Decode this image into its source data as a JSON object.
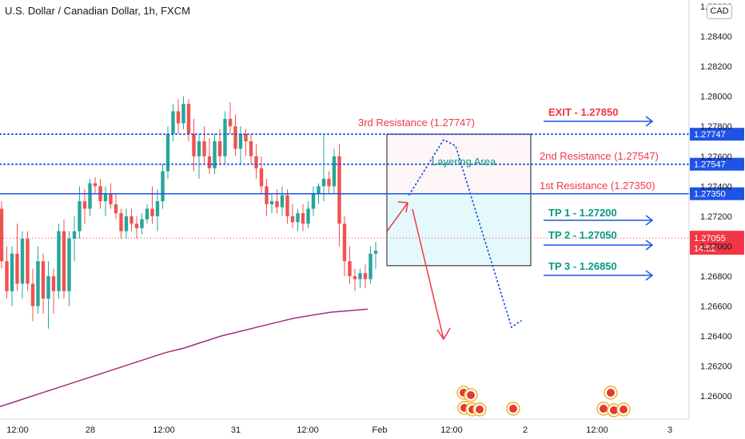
{
  "chart_data": {
    "type": "candlestick",
    "title": "U.S. Dollar / Canadian Dollar, 1h, FXCM",
    "currency": "CAD",
    "ylim": [
      1.259,
      1.286
    ],
    "y_ticks": [
      1.26,
      1.262,
      1.264,
      1.266,
      1.268,
      1.27,
      1.272,
      1.274,
      1.276,
      1.278,
      1.28,
      1.282,
      1.284,
      1.286
    ],
    "y_tick_labels": [
      "1.26000",
      "1.26200",
      "1.26400",
      "1.26600",
      "1.26800",
      "1.27000",
      "1.27200",
      "1.27400",
      "1.27600",
      "1.27800",
      "1.28000",
      "1.28200",
      "1.28400",
      "1.28600"
    ],
    "x_ticks": [
      "12:00",
      "28",
      "12:00",
      "31",
      "12:00",
      "Feb",
      "12:00",
      "2",
      "12:00",
      "3"
    ],
    "candles": [
      [
        1.2725,
        1.273,
        1.2685,
        1.269
      ],
      [
        1.269,
        1.27,
        1.2665,
        1.267
      ],
      [
        1.267,
        1.27,
        1.266,
        1.2695
      ],
      [
        1.2695,
        1.2715,
        1.267,
        1.2675
      ],
      [
        1.2675,
        1.271,
        1.2665,
        1.2705
      ],
      [
        1.2705,
        1.271,
        1.267,
        1.2675
      ],
      [
        1.2675,
        1.2685,
        1.265,
        1.266
      ],
      [
        1.266,
        1.27,
        1.2655,
        1.269
      ],
      [
        1.269,
        1.2695,
        1.2655,
        1.2665
      ],
      [
        1.2665,
        1.269,
        1.2645,
        1.268
      ],
      [
        1.268,
        1.2685,
        1.2655,
        1.267
      ],
      [
        1.267,
        1.2715,
        1.2665,
        1.271
      ],
      [
        1.271,
        1.2718,
        1.2665,
        1.267
      ],
      [
        1.267,
        1.271,
        1.266,
        1.2705
      ],
      [
        1.2705,
        1.272,
        1.269,
        1.271
      ],
      [
        1.271,
        1.274,
        1.2705,
        1.273
      ],
      [
        1.273,
        1.2738,
        1.2715,
        1.2725
      ],
      [
        1.2725,
        1.2745,
        1.272,
        1.2742
      ],
      [
        1.2742,
        1.2746,
        1.2735,
        1.274
      ],
      [
        1.274,
        1.2745,
        1.2725,
        1.273
      ],
      [
        1.273,
        1.274,
        1.272,
        1.2735
      ],
      [
        1.2735,
        1.2742,
        1.2725,
        1.2728
      ],
      [
        1.2728,
        1.2735,
        1.2718,
        1.2722
      ],
      [
        1.2722,
        1.2725,
        1.2705,
        1.271
      ],
      [
        1.271,
        1.2725,
        1.2705,
        1.272
      ],
      [
        1.272,
        1.2725,
        1.271,
        1.2715
      ],
      [
        1.2715,
        1.272,
        1.2705,
        1.2712
      ],
      [
        1.2712,
        1.2722,
        1.2708,
        1.2718
      ],
      [
        1.2718,
        1.2728,
        1.2715,
        1.2725
      ],
      [
        1.2725,
        1.274,
        1.2715,
        1.272
      ],
      [
        1.272,
        1.2738,
        1.271,
        1.273
      ],
      [
        1.273,
        1.2755,
        1.2725,
        1.275
      ],
      [
        1.275,
        1.278,
        1.2745,
        1.2775
      ],
      [
        1.2775,
        1.2795,
        1.277,
        1.279
      ],
      [
        1.279,
        1.2798,
        1.2775,
        1.2782
      ],
      [
        1.2782,
        1.28,
        1.2778,
        1.2795
      ],
      [
        1.2795,
        1.2798,
        1.277,
        1.2775
      ],
      [
        1.2775,
        1.2785,
        1.275,
        1.276
      ],
      [
        1.276,
        1.2775,
        1.2745,
        1.277
      ],
      [
        1.277,
        1.278,
        1.2755,
        1.276
      ],
      [
        1.276,
        1.2772,
        1.2748,
        1.2752
      ],
      [
        1.2752,
        1.2775,
        1.2748,
        1.277
      ],
      [
        1.277,
        1.2778,
        1.2755,
        1.276
      ],
      [
        1.276,
        1.279,
        1.2755,
        1.2785
      ],
      [
        1.2785,
        1.2796,
        1.2775,
        1.278
      ],
      [
        1.278,
        1.2788,
        1.276,
        1.2765
      ],
      [
        1.2765,
        1.278,
        1.2755,
        1.2775
      ],
      [
        1.2775,
        1.2778,
        1.276,
        1.277
      ],
      [
        1.277,
        1.2775,
        1.2755,
        1.276
      ],
      [
        1.276,
        1.2768,
        1.2745,
        1.2752
      ],
      [
        1.2752,
        1.276,
        1.2735,
        1.274
      ],
      [
        1.274,
        1.2745,
        1.272,
        1.2728
      ],
      [
        1.2728,
        1.2735,
        1.2722,
        1.273
      ],
      [
        1.273,
        1.2738,
        1.2722,
        1.2726
      ],
      [
        1.2726,
        1.274,
        1.272,
        1.2734
      ],
      [
        1.2734,
        1.2738,
        1.2715,
        1.272
      ],
      [
        1.272,
        1.2728,
        1.2712,
        1.2716
      ],
      [
        1.2716,
        1.2725,
        1.271,
        1.2722
      ],
      [
        1.2722,
        1.2728,
        1.271,
        1.2715
      ],
      [
        1.2715,
        1.273,
        1.2712,
        1.2725
      ],
      [
        1.2725,
        1.274,
        1.272,
        1.2735
      ],
      [
        1.2735,
        1.2742,
        1.2728,
        1.274
      ],
      [
        1.274,
        1.2775,
        1.273,
        1.2745
      ],
      [
        1.2745,
        1.275,
        1.2735,
        1.274
      ],
      [
        1.274,
        1.2765,
        1.2735,
        1.276
      ],
      [
        1.276,
        1.2768,
        1.27,
        1.2715
      ],
      [
        1.2715,
        1.272,
        1.268,
        1.269
      ],
      [
        1.269,
        1.27,
        1.2675,
        1.268
      ],
      [
        1.268,
        1.2685,
        1.267,
        1.2678
      ],
      [
        1.2678,
        1.2685,
        1.2672,
        1.2682
      ],
      [
        1.2682,
        1.2688,
        1.2672,
        1.2678
      ],
      [
        1.2678,
        1.27,
        1.2675,
        1.2695
      ],
      [
        1.2695,
        1.2703,
        1.2685,
        1.2697
      ]
    ],
    "price_lines": [
      {
        "name": "1st Resistance",
        "value": 1.2735,
        "label": "1.27350",
        "style": "solid",
        "color": "#1e53e5"
      },
      {
        "name": "2nd Resistance",
        "value": 1.27547,
        "label": "1.27547",
        "style": "dotted",
        "color": "#1e53e5"
      },
      {
        "name": "3rd Resistance",
        "value": 1.27747,
        "label": "1.27747",
        "style": "dotted",
        "color": "#1e53e5"
      }
    ],
    "last_price": {
      "value": 1.27055,
      "label": "1.27055",
      "countdown": "14:52",
      "color": "#f23645"
    },
    "annotations": {
      "third_resistance": "3rd Resistance (1.27747)",
      "second_resistance": "2nd Resistance (1.27547)",
      "first_resistance": "1st Resistance (1.27350)",
      "layering_area": "Layering Area",
      "exit": "EXIT - 1.27850",
      "tp1": "TP 1 - 1.27200",
      "tp2": "TP 2 - 1.27050",
      "tp3": "TP 3 - 1.26850"
    },
    "moving_average": {
      "color": "#a0307a",
      "values": [
        1.2593,
        1.2597,
        1.2601,
        1.2605,
        1.2609,
        1.2613,
        1.2617,
        1.2621,
        1.2625,
        1.2629,
        1.2632,
        1.2636,
        1.264,
        1.2643,
        1.2646,
        1.2649,
        1.2652,
        1.2654,
        1.2656,
        1.2657,
        1.2658
      ]
    },
    "colors": {
      "up": "#26a69a",
      "down": "#ef5350",
      "green_text": "#089981",
      "red_text": "#f23645",
      "blue": "#1e53e5",
      "arrow_red": "#f23645"
    }
  }
}
